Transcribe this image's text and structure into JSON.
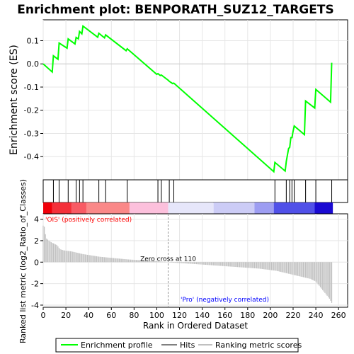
{
  "chart_data": {
    "type": "line",
    "title": "Enrichment plot: BENPORATH_SUZ12_TARGETS",
    "top_panel": {
      "ylabel": "Enrichment score (ES)",
      "ylim": [
        -0.5,
        0.19
      ],
      "yticks": [
        0.1,
        0.0,
        -0.1,
        -0.2,
        -0.3,
        -0.4
      ],
      "ytick_labels": [
        "0.1",
        "0.0",
        "-0.1",
        "-0.2",
        "-0.3",
        "-0.4"
      ],
      "series": [
        {
          "name": "Enrichment profile",
          "color": "#00ff00",
          "x": [
            0,
            8,
            9,
            13,
            14,
            21,
            22,
            28,
            29,
            31,
            32,
            34,
            35,
            48,
            49,
            54,
            55,
            73,
            74,
            100,
            101,
            103,
            104,
            110,
            111,
            114,
            115,
            203,
            204,
            213,
            214,
            216,
            217,
            218,
            219,
            220,
            221,
            230,
            231,
            239,
            240,
            253,
            254
          ],
          "y": [
            0.0,
            -0.035,
            0.035,
            0.02,
            0.09,
            0.068,
            0.108,
            0.086,
            0.114,
            0.108,
            0.14,
            0.13,
            0.163,
            0.115,
            0.132,
            0.112,
            0.125,
            0.057,
            0.065,
            -0.045,
            -0.042,
            -0.05,
            -0.048,
            -0.07,
            -0.075,
            -0.085,
            -0.083,
            -0.465,
            -0.425,
            -0.462,
            -0.42,
            -0.365,
            -0.36,
            -0.318,
            -0.318,
            -0.29,
            -0.268,
            -0.305,
            -0.16,
            -0.19,
            -0.11,
            -0.165,
            0.005
          ]
        }
      ]
    },
    "hits": {
      "name": "Hits",
      "positions": [
        9,
        14,
        22,
        29,
        32,
        35,
        49,
        55,
        74,
        101,
        104,
        111,
        115,
        204,
        214,
        217,
        219,
        221,
        231,
        240,
        254
      ]
    },
    "color_bar": {
      "segments": [
        {
          "from": 0,
          "to": 8,
          "color": "#f0000a"
        },
        {
          "from": 8,
          "to": 25,
          "color": "#f4303a"
        },
        {
          "from": 25,
          "to": 38,
          "color": "#f85a64"
        },
        {
          "from": 38,
          "to": 76,
          "color": "#fa8888"
        },
        {
          "from": 76,
          "to": 110,
          "color": "#fcc0dc"
        },
        {
          "from": 110,
          "to": 150,
          "color": "#e6e6fa"
        },
        {
          "from": 150,
          "to": 186,
          "color": "#ccccf6"
        },
        {
          "from": 186,
          "to": 203,
          "color": "#9d9df2"
        },
        {
          "from": 203,
          "to": 239,
          "color": "#5050e8"
        },
        {
          "from": 239,
          "to": 255,
          "color": "#1a0ad2"
        }
      ],
      "label_positive": "'OIS' (positively correlated)",
      "label_negative": "'Pro' (negatively correlated)",
      "positive_color": "#ff0000",
      "negative_color": "#0000ff"
    },
    "bottom_panel": {
      "ylabel": "Ranked list metric (log2_Ratio_of_Classes)",
      "xlabel": "Rank in Ordered Dataset",
      "ylim": [
        -4.2,
        4.5
      ],
      "yticks": [
        4,
        2,
        0,
        -2,
        -4
      ],
      "ytick_labels": [
        "4",
        "2",
        "0",
        "-2",
        "-4"
      ],
      "series": [
        {
          "name": "Ranking metric scores",
          "color": "#c0c0c0",
          "x": [
            0,
            1,
            2,
            3,
            5,
            8,
            12,
            15,
            18,
            25,
            35,
            50,
            75,
            95,
            109,
            110,
            130,
            150,
            170,
            190,
            205,
            215,
            225,
            235,
            240,
            243,
            246,
            249,
            252,
            254
          ],
          "y": [
            3.4,
            3.3,
            2.6,
            2.2,
            2.0,
            1.8,
            1.6,
            1.2,
            1.1,
            1.0,
            0.75,
            0.5,
            0.25,
            0.12,
            0.02,
            -0.02,
            -0.15,
            -0.3,
            -0.45,
            -0.6,
            -0.8,
            -1.05,
            -1.3,
            -1.55,
            -1.8,
            -2.2,
            -2.6,
            -3.0,
            -3.4,
            -3.8
          ]
        }
      ],
      "zero_cross_label": "Zero cross at 110",
      "zero_cross_x": 110
    },
    "xlim": [
      0,
      268
    ],
    "xticks": [
      0,
      20,
      40,
      60,
      80,
      100,
      120,
      140,
      160,
      180,
      200,
      220,
      240,
      260
    ],
    "xtick_labels": [
      "0",
      "20",
      "40",
      "60",
      "80",
      "100",
      "120",
      "140",
      "160",
      "180",
      "200",
      "220",
      "240",
      "260"
    ],
    "grid": true,
    "legend": {
      "placement": "bottom",
      "entries": [
        {
          "label": "Enrichment profile",
          "color": "#00ff00"
        },
        {
          "label": "Hits",
          "color": "#000000"
        },
        {
          "label": "Ranking metric scores",
          "color": "#c0c0c0"
        }
      ]
    }
  }
}
